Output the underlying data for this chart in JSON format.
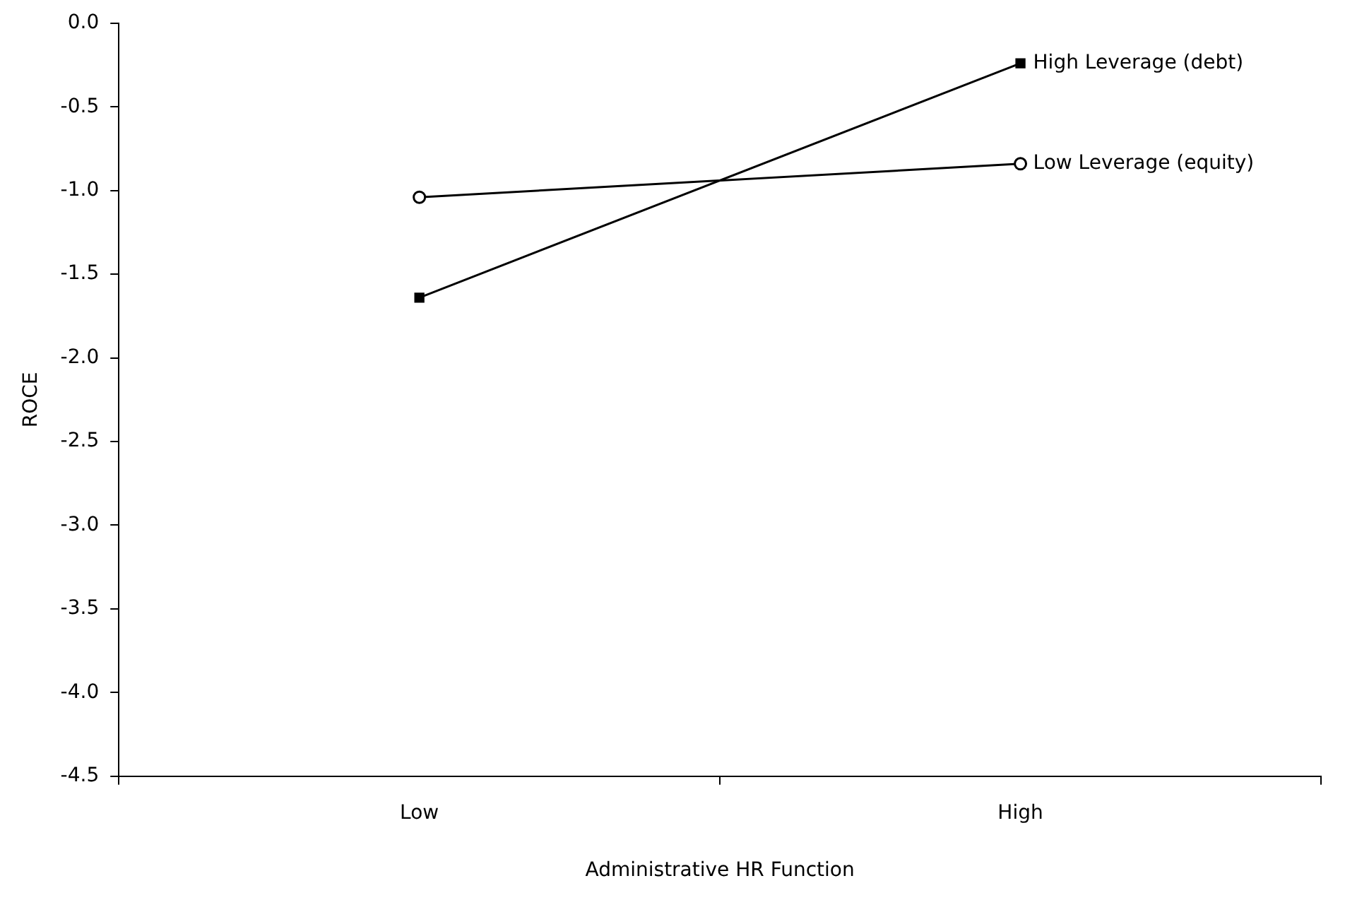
{
  "chart_data": {
    "type": "line",
    "xlabel": "Administrative HR Function",
    "ylabel": "ROCE",
    "categories": [
      "Low",
      "High"
    ],
    "series": [
      {
        "name": "High Leverage (debt)",
        "color": "#000000",
        "marker": "square",
        "values": [
          -1.64,
          -0.24
        ]
      },
      {
        "name": "Low Leverage (equity)",
        "color": "#000000",
        "marker": "circle",
        "values": [
          -1.04,
          -0.84
        ]
      }
    ],
    "ylim": [
      -4.5,
      0
    ],
    "yticks": [
      {
        "value": -4.5,
        "label": "-4.5"
      },
      {
        "value": -4,
        "label": "-4.0"
      },
      {
        "value": -3.5,
        "label": "-3.5"
      },
      {
        "value": -3,
        "label": "-3.0"
      },
      {
        "value": -2.5,
        "label": "-2.5"
      },
      {
        "value": -2,
        "label": "-2.0"
      },
      {
        "value": -1.5,
        "label": "-1.5"
      },
      {
        "value": -1,
        "label": "-1.0"
      },
      {
        "value": -0.5,
        "label": "-0.5"
      },
      {
        "value": 0,
        "label": "0.0"
      }
    ],
    "grid": false,
    "legend": false,
    "line_style": "solid"
  }
}
